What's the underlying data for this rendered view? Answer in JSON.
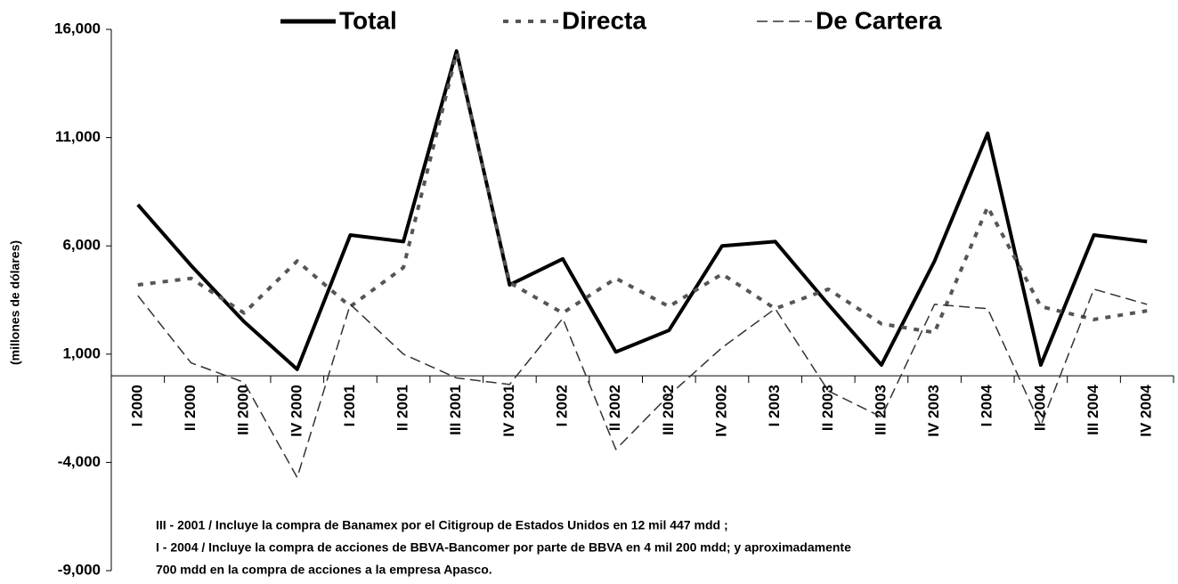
{
  "chart_data": {
    "type": "line",
    "y_label": "(millones de dólares)",
    "categories": [
      "I 2000",
      "II 2000",
      "III 2000",
      "IV 2000",
      "I 2001",
      "II 2001",
      "III 2001",
      "IV 2001",
      "I 2002",
      "II 2002",
      "III 2002",
      "IV 2002",
      "I 2003",
      "II 2003",
      "III 2003",
      "IV 2003",
      "I 2004",
      "II 2004",
      "III 2004",
      "IV 2004"
    ],
    "series": [
      {
        "name": "Total",
        "color": "#000000",
        "values": [
          7900,
          5100,
          2500,
          300,
          6500,
          6200,
          15000,
          4200,
          5400,
          1100,
          2100,
          6000,
          6200,
          3300,
          500,
          5300,
          11200,
          500,
          6500,
          6200
        ]
      },
      {
        "name": "Directa",
        "color": "#555555",
        "values": [
          4200,
          4500,
          2900,
          5300,
          3200,
          5000,
          14900,
          4300,
          2900,
          4500,
          3200,
          4700,
          3100,
          4000,
          2400,
          2000,
          7800,
          3200,
          2600,
          3000
        ]
      },
      {
        "name": "De Cartera",
        "color": "#333333",
        "values": [
          3700,
          600,
          -300,
          -4700,
          3300,
          1000,
          -100,
          -400,
          2650,
          -3400,
          -900,
          1300,
          3100,
          -700,
          -1900,
          3300,
          3100,
          -2300,
          4000,
          3300
        ]
      }
    ],
    "ylim": [
      -9000,
      16000
    ],
    "yticks": [
      {
        "value": -9000,
        "label": "-9,000"
      },
      {
        "value": -4000,
        "label": "-4,000"
      },
      {
        "value": 1000,
        "label": "1,000"
      },
      {
        "value": 6000,
        "label": "6,000"
      },
      {
        "value": 11000,
        "label": "11,000"
      },
      {
        "value": 16000,
        "label": "16,000"
      }
    ],
    "grid": false,
    "legend": "top",
    "notes": [
      "III - 2001 / Incluye la compra de Banamex por el Citigroup de Estados Unidos en 12 mil 447 mdd ;",
      "I - 2004 / Incluye la compra de acciones de BBVA-Bancomer por parte de BBVA en 4 mil 200 mdd; y aproximadamente",
      "700 mdd en la compra de acciones a la empresa Apasco."
    ]
  }
}
